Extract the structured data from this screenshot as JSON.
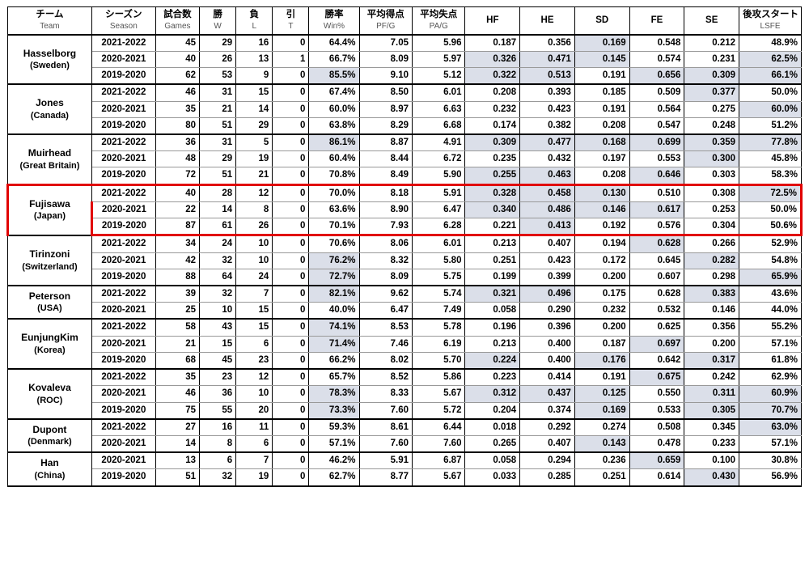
{
  "colors": {
    "shade": "#dbdfe9",
    "highlight": "#e10000",
    "border": "#000000",
    "innerBorder": "#999999",
    "sublabel": "#555555",
    "bg": "#ffffff"
  },
  "headers": [
    {
      "jp": "チーム",
      "en": "Team"
    },
    {
      "jp": "シーズン",
      "en": "Season"
    },
    {
      "jp": "試合数",
      "en": "Games"
    },
    {
      "jp": "勝",
      "en": "W"
    },
    {
      "jp": "負",
      "en": "L"
    },
    {
      "jp": "引",
      "en": "T"
    },
    {
      "jp": "勝率",
      "en": "Win%"
    },
    {
      "jp": "平均得点",
      "en": "PF/G"
    },
    {
      "jp": "平均失点",
      "en": "PA/G"
    },
    {
      "jp": "HF",
      "en": ""
    },
    {
      "jp": "HE",
      "en": ""
    },
    {
      "jp": "SD",
      "en": ""
    },
    {
      "jp": "FE",
      "en": ""
    },
    {
      "jp": "SE",
      "en": ""
    },
    {
      "jp": "後攻スタート",
      "en": "LSFE"
    }
  ],
  "colKeys": [
    "games",
    "w",
    "l",
    "t",
    "winpct",
    "pfg",
    "pag",
    "hf",
    "he",
    "sd",
    "fe",
    "se",
    "lsfe"
  ],
  "shadedCols": {
    "hf": true,
    "he": true,
    "sd": true,
    "fe": true,
    "se": true,
    "lsfe": true
  },
  "highlightedTeamIndex": 3,
  "teams": [
    {
      "name": "Hasselborg",
      "country": "(Sweden)",
      "rows": [
        {
          "season": "2021-2022",
          "games": "45",
          "w": "29",
          "l": "16",
          "t": "0",
          "winpct": "64.4%",
          "pfg": "7.05",
          "pag": "5.96",
          "hf": "0.187",
          "he": "0.356",
          "sd": "0.169",
          "fe": "0.548",
          "se": "0.212",
          "lsfe": "48.9%",
          "shade": [
            "sd"
          ]
        },
        {
          "season": "2020-2021",
          "games": "40",
          "w": "26",
          "l": "13",
          "t": "1",
          "winpct": "66.7%",
          "pfg": "8.09",
          "pag": "5.97",
          "hf": "0.326",
          "he": "0.471",
          "sd": "0.145",
          "fe": "0.574",
          "se": "0.231",
          "lsfe": "62.5%",
          "shade": [
            "hf",
            "he",
            "sd",
            "lsfe"
          ]
        },
        {
          "season": "2019-2020",
          "games": "62",
          "w": "53",
          "l": "9",
          "t": "0",
          "winpct": "85.5%",
          "pfg": "9.10",
          "pag": "5.12",
          "hf": "0.322",
          "he": "0.513",
          "sd": "0.191",
          "fe": "0.656",
          "se": "0.309",
          "lsfe": "66.1%",
          "shade": [
            "winpct",
            "hf",
            "he",
            "fe",
            "se",
            "lsfe"
          ]
        }
      ]
    },
    {
      "name": "Jones",
      "country": "(Canada)",
      "rows": [
        {
          "season": "2021-2022",
          "games": "46",
          "w": "31",
          "l": "15",
          "t": "0",
          "winpct": "67.4%",
          "pfg": "8.50",
          "pag": "6.01",
          "hf": "0.208",
          "he": "0.393",
          "sd": "0.185",
          "fe": "0.509",
          "se": "0.377",
          "lsfe": "50.0%",
          "shade": [
            "se"
          ]
        },
        {
          "season": "2020-2021",
          "games": "35",
          "w": "21",
          "l": "14",
          "t": "0",
          "winpct": "60.0%",
          "pfg": "8.97",
          "pag": "6.63",
          "hf": "0.232",
          "he": "0.423",
          "sd": "0.191",
          "fe": "0.564",
          "se": "0.275",
          "lsfe": "60.0%",
          "shade": [
            "lsfe"
          ]
        },
        {
          "season": "2019-2020",
          "games": "80",
          "w": "51",
          "l": "29",
          "t": "0",
          "winpct": "63.8%",
          "pfg": "8.29",
          "pag": "6.68",
          "hf": "0.174",
          "he": "0.382",
          "sd": "0.208",
          "fe": "0.547",
          "se": "0.248",
          "lsfe": "51.2%",
          "shade": []
        }
      ]
    },
    {
      "name": "Muirhead",
      "country": "(Great Britain)",
      "rows": [
        {
          "season": "2021-2022",
          "games": "36",
          "w": "31",
          "l": "5",
          "t": "0",
          "winpct": "86.1%",
          "pfg": "8.87",
          "pag": "4.91",
          "hf": "0.309",
          "he": "0.477",
          "sd": "0.168",
          "fe": "0.699",
          "se": "0.359",
          "lsfe": "77.8%",
          "shade": [
            "winpct",
            "hf",
            "he",
            "sd",
            "fe",
            "se",
            "lsfe"
          ]
        },
        {
          "season": "2020-2021",
          "games": "48",
          "w": "29",
          "l": "19",
          "t": "0",
          "winpct": "60.4%",
          "pfg": "8.44",
          "pag": "6.72",
          "hf": "0.235",
          "he": "0.432",
          "sd": "0.197",
          "fe": "0.553",
          "se": "0.300",
          "lsfe": "45.8%",
          "shade": [
            "se"
          ]
        },
        {
          "season": "2019-2020",
          "games": "72",
          "w": "51",
          "l": "21",
          "t": "0",
          "winpct": "70.8%",
          "pfg": "8.49",
          "pag": "5.90",
          "hf": "0.255",
          "he": "0.463",
          "sd": "0.208",
          "fe": "0.646",
          "se": "0.303",
          "lsfe": "58.3%",
          "shade": [
            "hf",
            "he",
            "fe"
          ]
        }
      ]
    },
    {
      "name": "Fujisawa",
      "country": "(Japan)",
      "rows": [
        {
          "season": "2021-2022",
          "games": "40",
          "w": "28",
          "l": "12",
          "t": "0",
          "winpct": "70.0%",
          "pfg": "8.18",
          "pag": "5.91",
          "hf": "0.328",
          "he": "0.458",
          "sd": "0.130",
          "fe": "0.510",
          "se": "0.308",
          "lsfe": "72.5%",
          "shade": [
            "hf",
            "he",
            "sd",
            "lsfe"
          ]
        },
        {
          "season": "2020-2021",
          "games": "22",
          "w": "14",
          "l": "8",
          "t": "0",
          "winpct": "63.6%",
          "pfg": "8.90",
          "pag": "6.47",
          "hf": "0.340",
          "he": "0.486",
          "sd": "0.146",
          "fe": "0.617",
          "se": "0.253",
          "lsfe": "50.0%",
          "shade": [
            "hf",
            "he",
            "sd",
            "fe"
          ]
        },
        {
          "season": "2019-2020",
          "games": "87",
          "w": "61",
          "l": "26",
          "t": "0",
          "winpct": "70.1%",
          "pfg": "7.93",
          "pag": "6.28",
          "hf": "0.221",
          "he": "0.413",
          "sd": "0.192",
          "fe": "0.576",
          "se": "0.304",
          "lsfe": "50.6%",
          "shade": [
            "he"
          ]
        }
      ]
    },
    {
      "name": "Tirinzoni",
      "country": "(Switzerland)",
      "rows": [
        {
          "season": "2021-2022",
          "games": "34",
          "w": "24",
          "l": "10",
          "t": "0",
          "winpct": "70.6%",
          "pfg": "8.06",
          "pag": "6.01",
          "hf": "0.213",
          "he": "0.407",
          "sd": "0.194",
          "fe": "0.628",
          "se": "0.266",
          "lsfe": "52.9%",
          "shade": [
            "fe"
          ]
        },
        {
          "season": "2020-2021",
          "games": "42",
          "w": "32",
          "l": "10",
          "t": "0",
          "winpct": "76.2%",
          "pfg": "8.32",
          "pag": "5.80",
          "hf": "0.251",
          "he": "0.423",
          "sd": "0.172",
          "fe": "0.645",
          "se": "0.282",
          "lsfe": "54.8%",
          "shade": [
            "winpct",
            "se"
          ]
        },
        {
          "season": "2019-2020",
          "games": "88",
          "w": "64",
          "l": "24",
          "t": "0",
          "winpct": "72.7%",
          "pfg": "8.09",
          "pag": "5.75",
          "hf": "0.199",
          "he": "0.399",
          "sd": "0.200",
          "fe": "0.607",
          "se": "0.298",
          "lsfe": "65.9%",
          "shade": [
            "winpct",
            "lsfe"
          ]
        }
      ]
    },
    {
      "name": "Peterson",
      "country": "(USA)",
      "rows": [
        {
          "season": "2021-2022",
          "games": "39",
          "w": "32",
          "l": "7",
          "t": "0",
          "winpct": "82.1%",
          "pfg": "9.62",
          "pag": "5.74",
          "hf": "0.321",
          "he": "0.496",
          "sd": "0.175",
          "fe": "0.628",
          "se": "0.383",
          "lsfe": "43.6%",
          "shade": [
            "winpct",
            "hf",
            "he",
            "se"
          ]
        },
        {
          "season": "2020-2021",
          "games": "25",
          "w": "10",
          "l": "15",
          "t": "0",
          "winpct": "40.0%",
          "pfg": "6.47",
          "pag": "7.49",
          "hf": "0.058",
          "he": "0.290",
          "sd": "0.232",
          "fe": "0.532",
          "se": "0.146",
          "lsfe": "44.0%",
          "shade": []
        }
      ]
    },
    {
      "name": "EunjungKim",
      "country": "(Korea)",
      "rows": [
        {
          "season": "2021-2022",
          "games": "58",
          "w": "43",
          "l": "15",
          "t": "0",
          "winpct": "74.1%",
          "pfg": "8.53",
          "pag": "5.78",
          "hf": "0.196",
          "he": "0.396",
          "sd": "0.200",
          "fe": "0.625",
          "se": "0.356",
          "lsfe": "55.2%",
          "shade": [
            "winpct"
          ]
        },
        {
          "season": "2020-2021",
          "games": "21",
          "w": "15",
          "l": "6",
          "t": "0",
          "winpct": "71.4%",
          "pfg": "7.46",
          "pag": "6.19",
          "hf": "0.213",
          "he": "0.400",
          "sd": "0.187",
          "fe": "0.697",
          "se": "0.200",
          "lsfe": "57.1%",
          "shade": [
            "winpct",
            "fe"
          ]
        },
        {
          "season": "2019-2020",
          "games": "68",
          "w": "45",
          "l": "23",
          "t": "0",
          "winpct": "66.2%",
          "pfg": "8.02",
          "pag": "5.70",
          "hf": "0.224",
          "he": "0.400",
          "sd": "0.176",
          "fe": "0.642",
          "se": "0.317",
          "lsfe": "61.8%",
          "shade": [
            "hf",
            "sd",
            "se"
          ]
        }
      ]
    },
    {
      "name": "Kovaleva",
      "country": "(ROC)",
      "rows": [
        {
          "season": "2021-2022",
          "games": "35",
          "w": "23",
          "l": "12",
          "t": "0",
          "winpct": "65.7%",
          "pfg": "8.52",
          "pag": "5.86",
          "hf": "0.223",
          "he": "0.414",
          "sd": "0.191",
          "fe": "0.675",
          "se": "0.242",
          "lsfe": "62.9%",
          "shade": [
            "fe"
          ]
        },
        {
          "season": "2020-2021",
          "games": "46",
          "w": "36",
          "l": "10",
          "t": "0",
          "winpct": "78.3%",
          "pfg": "8.33",
          "pag": "5.67",
          "hf": "0.312",
          "he": "0.437",
          "sd": "0.125",
          "fe": "0.550",
          "se": "0.311",
          "lsfe": "60.9%",
          "shade": [
            "winpct",
            "hf",
            "he",
            "sd",
            "se",
            "lsfe"
          ]
        },
        {
          "season": "2019-2020",
          "games": "75",
          "w": "55",
          "l": "20",
          "t": "0",
          "winpct": "73.3%",
          "pfg": "7.60",
          "pag": "5.72",
          "hf": "0.204",
          "he": "0.374",
          "sd": "0.169",
          "fe": "0.533",
          "se": "0.305",
          "lsfe": "70.7%",
          "shade": [
            "winpct",
            "sd",
            "se",
            "lsfe"
          ]
        }
      ]
    },
    {
      "name": "Dupont",
      "country": "(Denmark)",
      "rows": [
        {
          "season": "2021-2022",
          "games": "27",
          "w": "16",
          "l": "11",
          "t": "0",
          "winpct": "59.3%",
          "pfg": "8.61",
          "pag": "6.44",
          "hf": "0.018",
          "he": "0.292",
          "sd": "0.274",
          "fe": "0.508",
          "se": "0.345",
          "lsfe": "63.0%",
          "shade": [
            "lsfe"
          ]
        },
        {
          "season": "2020-2021",
          "games": "14",
          "w": "8",
          "l": "6",
          "t": "0",
          "winpct": "57.1%",
          "pfg": "7.60",
          "pag": "7.60",
          "hf": "0.265",
          "he": "0.407",
          "sd": "0.143",
          "fe": "0.478",
          "se": "0.233",
          "lsfe": "57.1%",
          "shade": [
            "sd"
          ]
        }
      ]
    },
    {
      "name": "Han",
      "country": "(China)",
      "rows": [
        {
          "season": "2020-2021",
          "games": "13",
          "w": "6",
          "l": "7",
          "t": "0",
          "winpct": "46.2%",
          "pfg": "5.91",
          "pag": "6.87",
          "hf": "0.058",
          "he": "0.294",
          "sd": "0.236",
          "fe": "0.659",
          "se": "0.100",
          "lsfe": "30.8%",
          "shade": [
            "fe"
          ]
        },
        {
          "season": "2019-2020",
          "games": "51",
          "w": "32",
          "l": "19",
          "t": "0",
          "winpct": "62.7%",
          "pfg": "8.77",
          "pag": "5.67",
          "hf": "0.033",
          "he": "0.285",
          "sd": "0.251",
          "fe": "0.614",
          "se": "0.430",
          "lsfe": "56.9%",
          "shade": [
            "se"
          ]
        }
      ]
    }
  ]
}
